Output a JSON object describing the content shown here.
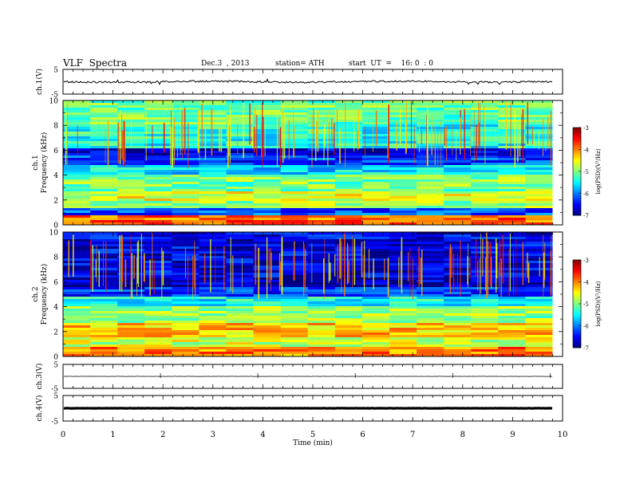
{
  "header": {
    "title": "VLF  Spectra",
    "date": "Dec.3  , 2013",
    "station": "station= ATH",
    "start": "start  UT  =    16: 0  : 0"
  },
  "chart_data": [
    {
      "type": "line",
      "panel": "ch1-waveform",
      "ylabel": "ch.1(V)",
      "ylim": [
        -5,
        5
      ],
      "yticks": [
        "5",
        "-5"
      ],
      "baseline": 0,
      "color": "#000000"
    },
    {
      "type": "heatmap",
      "panel": "ch1-spectrogram",
      "ylabel": "ch.1\nFrequency  (kHz)",
      "ylim": [
        0,
        10
      ],
      "yticks": [
        "0",
        "2",
        "4",
        "6",
        "8",
        "10"
      ],
      "colorbar": {
        "label": "log(PSD)(V²/Hz)",
        "range": [
          -7,
          -3
        ],
        "ticks": [
          "-3",
          "-4",
          "-5",
          "-6",
          "-7"
        ]
      },
      "bands": [
        {
          "from": 0,
          "to": 0.8,
          "level": -3.9
        },
        {
          "from": 0.8,
          "to": 1.3,
          "level": -6.2
        },
        {
          "from": 1.3,
          "to": 2.0,
          "level": -4.9
        },
        {
          "from": 2.0,
          "to": 2.6,
          "level": -4.6
        },
        {
          "from": 2.6,
          "to": 4.0,
          "level": -5.0
        },
        {
          "from": 4.0,
          "to": 4.8,
          "level": -5.6
        },
        {
          "from": 4.8,
          "to": 5.5,
          "level": -6.3
        },
        {
          "from": 5.5,
          "to": 6.2,
          "level": -6.7
        },
        {
          "from": 6.2,
          "to": 8.0,
          "level": -5.4
        },
        {
          "from": 8.0,
          "to": 10.0,
          "level": -5.1
        }
      ]
    },
    {
      "type": "heatmap",
      "panel": "ch2-spectrogram",
      "ylabel": "ch.2\nFrequency  (kHz)",
      "ylim": [
        0,
        10
      ],
      "yticks": [
        "0",
        "2",
        "4",
        "6",
        "8",
        "10"
      ],
      "colorbar": {
        "label": "log(PSD)(V²/Hz)",
        "range": [
          -7,
          -3
        ],
        "ticks": [
          "-3",
          "-4",
          "-5",
          "-6",
          "-7"
        ]
      },
      "bands": [
        {
          "from": 0,
          "to": 0.8,
          "level": -4.0
        },
        {
          "from": 0.8,
          "to": 1.6,
          "level": -4.7
        },
        {
          "from": 1.6,
          "to": 2.6,
          "level": -4.3
        },
        {
          "from": 2.6,
          "to": 4.0,
          "level": -4.9
        },
        {
          "from": 4.0,
          "to": 4.8,
          "level": -5.5
        },
        {
          "from": 4.8,
          "to": 5.5,
          "level": -6.3
        },
        {
          "from": 5.5,
          "to": 6.3,
          "level": -6.8
        },
        {
          "from": 6.3,
          "to": 10.0,
          "level": -6.6
        }
      ]
    },
    {
      "type": "line",
      "panel": "ch3-waveform",
      "ylabel": "ch.3(V)",
      "ylim": [
        -5,
        5
      ],
      "yticks": [
        "5",
        "-5"
      ],
      "baseline": 0,
      "color": "#000000"
    },
    {
      "type": "line",
      "panel": "ch4-waveform",
      "ylabel": "ch.4(V)",
      "ylim": [
        -5,
        5
      ],
      "yticks": [
        "5",
        "-5"
      ],
      "baseline": 0,
      "color": "#000000"
    }
  ],
  "x_axis": {
    "label": "Time  (min)",
    "range": [
      0,
      10
    ],
    "ticks": [
      "0",
      "1",
      "2",
      "3",
      "4",
      "5",
      "6",
      "7",
      "8",
      "9",
      "10"
    ],
    "data_end": 9.8
  }
}
